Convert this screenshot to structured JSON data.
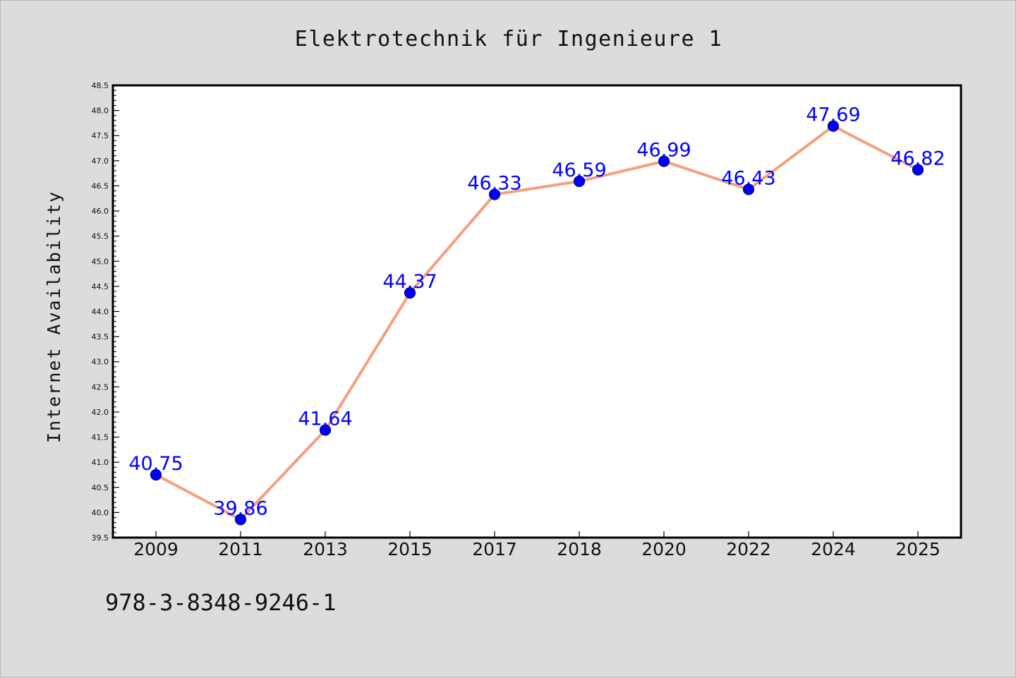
{
  "chart_data": {
    "type": "line",
    "title": "Elektrotechnik für Ingenieure 1",
    "xlabel": "",
    "ylabel": "Internet Availability",
    "categories": [
      "2009",
      "2011",
      "2013",
      "2015",
      "2017",
      "2018",
      "2020",
      "2022",
      "2024",
      "2025"
    ],
    "series": [
      {
        "values": [
          40.75,
          39.86,
          41.64,
          44.37,
          46.33,
          46.59,
          46.99,
          46.43,
          47.69,
          46.82
        ],
        "line_color": "#f4a07e",
        "marker_color": "#0000ff"
      }
    ],
    "ylim": [
      39.5,
      48.5
    ],
    "ytick_step": 0.5,
    "ytick_labels": [
      "39.5",
      "40.0",
      "40.5",
      "41.0",
      "41.5",
      "42.0",
      "42.5",
      "43.0",
      "43.5",
      "44.0",
      "44.5",
      "45.0",
      "45.5",
      "46.0",
      "46.5",
      "47.0",
      "47.5",
      "48.0",
      "48.5"
    ],
    "data_labels": [
      "40.75",
      "39.86",
      "41.64",
      "44.37",
      "46.33",
      "46.59",
      "46.99",
      "46.43",
      "47.69",
      "46.82"
    ],
    "grid": false,
    "legend": "none"
  },
  "footer": {
    "isbn": "978-3-8348-9246-1"
  },
  "colors": {
    "background": "#dcdcdc",
    "plot_background": "#ffffff",
    "line": "#f4a07e",
    "marker": "#0000ff",
    "data_label": "#0000ff"
  }
}
